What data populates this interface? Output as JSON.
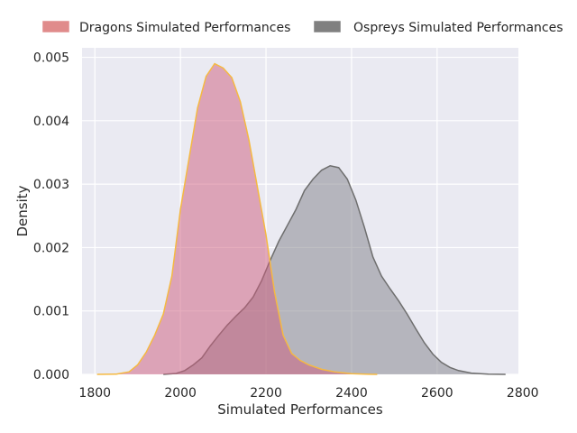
{
  "chart_data": {
    "type": "area",
    "xlabel": "Simulated Performances",
    "ylabel": "Density",
    "xlim": [
      1770,
      2790
    ],
    "ylim": [
      0,
      0.00515
    ],
    "x_ticks": [
      1800,
      2000,
      2200,
      2400,
      2600,
      2800
    ],
    "y_ticks": [
      0.0,
      0.001,
      0.002,
      0.003,
      0.004,
      0.005
    ],
    "x_tick_labels": [
      "1800",
      "2000",
      "2200",
      "2400",
      "2600",
      "2800"
    ],
    "y_tick_labels": [
      "0.000",
      "0.001",
      "0.002",
      "0.003",
      "0.004",
      "0.005"
    ],
    "grid": true,
    "legend_position": "top",
    "series": [
      {
        "name": "Dragons Simulated Performances",
        "fill_color": "#cd5c7c",
        "edge_color": "#f5b942",
        "legend_color": "#e08b8b",
        "points": [
          [
            1805,
            0
          ],
          [
            1850,
            4e-06
          ],
          [
            1880,
            4e-05
          ],
          [
            1900,
            0.00015
          ],
          [
            1920,
            0.00035
          ],
          [
            1940,
            0.00062
          ],
          [
            1960,
            0.00095
          ],
          [
            1980,
            0.00155
          ],
          [
            2000,
            0.0026
          ],
          [
            2020,
            0.0034
          ],
          [
            2040,
            0.0042
          ],
          [
            2060,
            0.0047
          ],
          [
            2080,
            0.0049
          ],
          [
            2100,
            0.00483
          ],
          [
            2120,
            0.00468
          ],
          [
            2140,
            0.0043
          ],
          [
            2160,
            0.0037
          ],
          [
            2180,
            0.00295
          ],
          [
            2200,
            0.0022
          ],
          [
            2220,
            0.0013
          ],
          [
            2240,
            0.00062
          ],
          [
            2260,
            0.00033
          ],
          [
            2280,
            0.00022
          ],
          [
            2300,
            0.00015
          ],
          [
            2330,
            8e-05
          ],
          [
            2360,
            4e-05
          ],
          [
            2400,
            1e-05
          ],
          [
            2440,
            2e-06
          ],
          [
            2460,
            0
          ]
        ]
      },
      {
        "name": "Ospreys Simulated Performances",
        "fill_color": "#7f7f88",
        "edge_color": "#6e6e6e",
        "legend_color": "#808080",
        "points": [
          [
            1960,
            0
          ],
          [
            1990,
            1.5e-05
          ],
          [
            2010,
            6e-05
          ],
          [
            2030,
            0.00015
          ],
          [
            2050,
            0.00026
          ],
          [
            2070,
            0.00045
          ],
          [
            2090,
            0.00062
          ],
          [
            2110,
            0.00078
          ],
          [
            2130,
            0.00092
          ],
          [
            2150,
            0.00105
          ],
          [
            2170,
            0.00122
          ],
          [
            2190,
            0.00148
          ],
          [
            2210,
            0.0018
          ],
          [
            2230,
            0.0021
          ],
          [
            2250,
            0.00235
          ],
          [
            2270,
            0.0026
          ],
          [
            2290,
            0.0029
          ],
          [
            2310,
            0.00308
          ],
          [
            2330,
            0.00322
          ],
          [
            2350,
            0.00329
          ],
          [
            2370,
            0.00326
          ],
          [
            2390,
            0.00308
          ],
          [
            2410,
            0.00275
          ],
          [
            2430,
            0.00232
          ],
          [
            2450,
            0.00185
          ],
          [
            2470,
            0.00155
          ],
          [
            2490,
            0.00135
          ],
          [
            2510,
            0.00116
          ],
          [
            2530,
            0.00095
          ],
          [
            2550,
            0.00072
          ],
          [
            2570,
            0.0005
          ],
          [
            2590,
            0.00032
          ],
          [
            2610,
            0.00019
          ],
          [
            2630,
            0.00011
          ],
          [
            2650,
            6e-05
          ],
          [
            2680,
            2e-05
          ],
          [
            2720,
            4e-06
          ],
          [
            2760,
            0
          ]
        ]
      }
    ]
  }
}
